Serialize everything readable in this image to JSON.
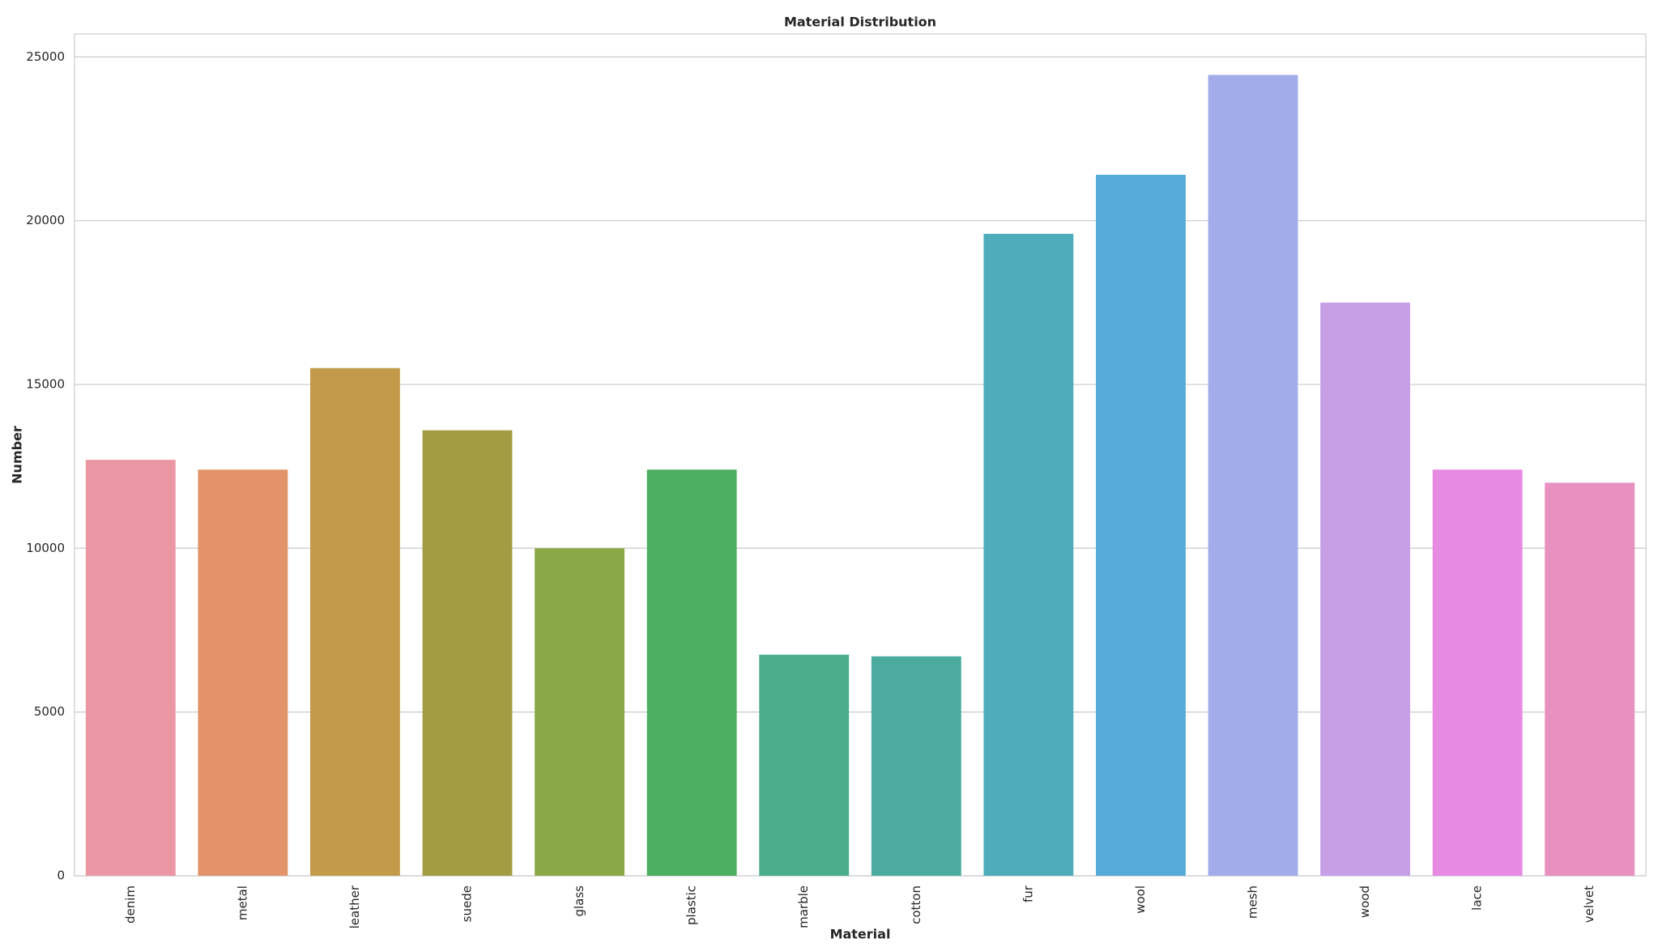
{
  "chart_data": {
    "type": "bar",
    "title": "Material Distribution",
    "x_label": "Material",
    "y_label": "Number",
    "categories": [
      "denim",
      "metal",
      "leather",
      "suede",
      "glass",
      "plastic",
      "marble",
      "cotton",
      "fur",
      "wool",
      "mesh",
      "wood",
      "lace",
      "velvet"
    ],
    "values": [
      12700,
      12400,
      15500,
      13600,
      10000,
      12400,
      6750,
      6700,
      19600,
      21400,
      24450,
      17500,
      12400,
      12000
    ],
    "colors": [
      "#ea96a3",
      "#e39369",
      "#c39a4a",
      "#a49c43",
      "#8ba846",
      "#4daf62",
      "#4aae8c",
      "#4bab9f",
      "#4facbb",
      "#55aad8",
      "#a2acea",
      "#c69fe6",
      "#e78ae2",
      "#e890bf"
    ],
    "ylim": [
      0,
      25700
    ],
    "yticks": [
      0,
      5000,
      10000,
      15000,
      20000,
      25000
    ],
    "grid": true
  }
}
